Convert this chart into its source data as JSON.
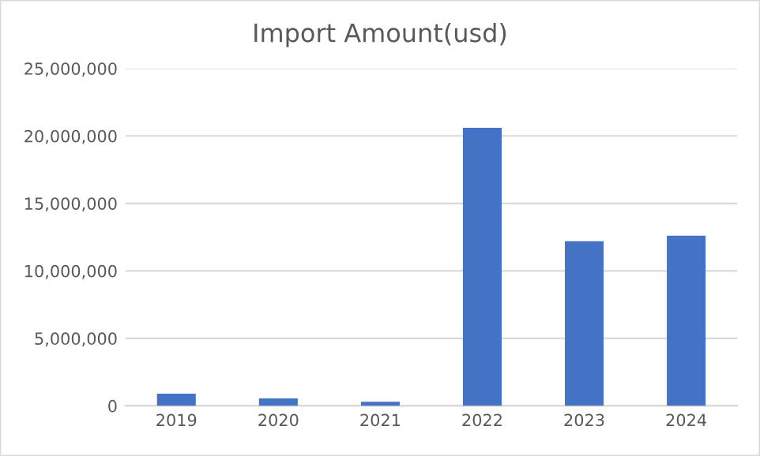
{
  "chart_data": {
    "type": "bar",
    "title": "Import Amount(usd)",
    "categories": [
      "2019",
      "2020",
      "2021",
      "2022",
      "2023",
      "2024"
    ],
    "values": [
      900000,
      550000,
      300000,
      20600000,
      12200000,
      12600000
    ],
    "color": "#4472c4",
    "ylim": [
      0,
      25000000
    ],
    "yticks": [
      {
        "value": 0,
        "label": "0"
      },
      {
        "value": 5000000,
        "label": "5,000,000"
      },
      {
        "value": 10000000,
        "label": "10,000,000"
      },
      {
        "value": 15000000,
        "label": "15,000,000"
      },
      {
        "value": 20000000,
        "label": "20,000,000"
      },
      {
        "value": 25000000,
        "label": "25,000,000"
      }
    ],
    "grid": "y",
    "legend": false
  }
}
